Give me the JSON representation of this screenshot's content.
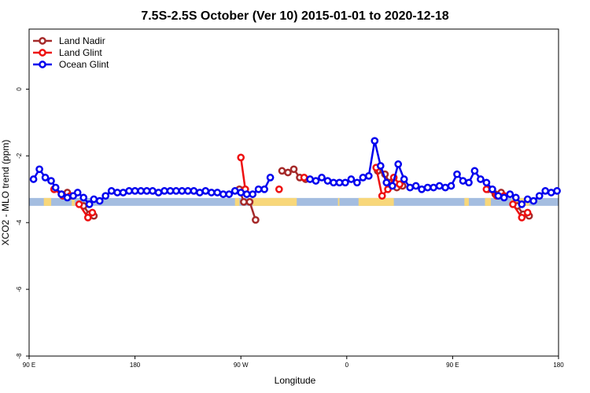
{
  "chart_data": {
    "type": "line",
    "title": "7.5S-2.5S October (Ver 10)   2015-01-01 to 2020-12-18",
    "xlabel": "Longitude",
    "ylabel": "XCO2 - MLO trend (ppm)",
    "xlim": [
      45,
      405
    ],
    "ylim": [
      -8,
      1.8
    ],
    "x_ticks": [
      {
        "value": 45,
        "label": "90 E"
      },
      {
        "value": 117,
        "label": "180"
      },
      {
        "value": 189,
        "label": "90 W"
      },
      {
        "value": 261,
        "label": "0"
      },
      {
        "value": 333,
        "label": "90 E"
      },
      {
        "value": 405,
        "label": "180"
      }
    ],
    "y_ticks": [
      0,
      -2,
      -4,
      -6,
      -8
    ],
    "grid": false,
    "legend_position": "top-left",
    "land_ocean_strip": {
      "y_center": -3.38,
      "ocean_color": "#a4bde0",
      "land_color": "#f8d77a",
      "land_segments": [
        [
          55,
          60
        ],
        [
          74,
          76
        ],
        [
          185,
          188
        ],
        [
          197,
          227
        ],
        [
          255,
          256
        ],
        [
          269,
          293
        ],
        [
          341,
          344
        ],
        [
          355,
          359
        ],
        [
          373,
          385
        ]
      ]
    },
    "series": [
      {
        "name": "Land Nadir",
        "color": "#a52a2a",
        "segments": [
          [
            [
              62,
              -3.0
            ],
            [
              67,
              -3.15
            ],
            [
              71,
              -3.1
            ]
          ],
          [
            [
              82,
              -3.5
            ],
            [
              86,
              -3.75
            ],
            [
              89,
              -3.8
            ]
          ],
          [
            [
              188,
              -3.0
            ],
            [
              191,
              -3.38
            ],
            [
              195,
              -3.38
            ],
            [
              199,
              -3.92
            ]
          ],
          [
            [
              217,
              -2.45
            ],
            [
              221,
              -2.5
            ],
            [
              225,
              -2.4
            ],
            [
              229,
              -2.65
            ],
            [
              233,
              -2.7
            ]
          ],
          [
            [
              282,
              -2.45
            ],
            [
              287,
              -2.55
            ],
            [
              290,
              -2.8
            ],
            [
              295,
              -2.95
            ],
            [
              299,
              -2.9
            ]
          ],
          [
            [
              357,
              -3.0
            ],
            [
              362,
              -3.15
            ],
            [
              366,
              -3.1
            ]
          ],
          [
            [
              377,
              -3.5
            ],
            [
              381,
              -3.75
            ],
            [
              385,
              -3.8
            ]
          ]
        ]
      },
      {
        "name": "Land Glint",
        "color": "#ee1111",
        "segments": [
          [
            [
              62,
              -3.0
            ],
            [
              68,
              -3.2
            ],
            [
              73,
              -3.2
            ]
          ],
          [
            [
              79,
              -3.45
            ],
            [
              85,
              -3.85
            ],
            [
              88,
              -3.7
            ]
          ],
          [
            [
              189,
              -2.05
            ],
            [
              192,
              -3.0
            ]
          ],
          [
            [
              215,
              -3.0
            ]
          ],
          [
            [
              232,
              -2.65
            ]
          ],
          [
            [
              281,
              -2.35
            ],
            [
              285,
              -3.2
            ],
            [
              289,
              -3.0
            ],
            [
              293,
              -2.65
            ],
            [
              297,
              -2.85
            ]
          ],
          [
            [
              356,
              -3.0
            ],
            [
              363,
              -3.2
            ],
            [
              368,
              -3.2
            ]
          ],
          [
            [
              374,
              -3.45
            ],
            [
              380,
              -3.85
            ],
            [
              384,
              -3.7
            ]
          ]
        ]
      },
      {
        "name": "Ocean Glint",
        "color": "#0000ee",
        "segments": [
          [
            [
              48,
              -2.7
            ],
            [
              52,
              -2.4
            ],
            [
              56,
              -2.65
            ],
            [
              60,
              -2.75
            ],
            [
              63,
              -2.95
            ],
            [
              67,
              -3.15
            ],
            [
              71,
              -3.25
            ],
            [
              75,
              -3.2
            ],
            [
              78,
              -3.1
            ],
            [
              82,
              -3.25
            ],
            [
              86,
              -3.45
            ],
            [
              89,
              -3.3
            ],
            [
              93,
              -3.35
            ],
            [
              97,
              -3.2
            ],
            [
              101,
              -3.05
            ],
            [
              105,
              -3.1
            ],
            [
              109,
              -3.1
            ],
            [
              113,
              -3.05
            ],
            [
              117,
              -3.05
            ],
            [
              121,
              -3.05
            ],
            [
              125,
              -3.05
            ],
            [
              129,
              -3.05
            ],
            [
              133,
              -3.1
            ],
            [
              137,
              -3.05
            ],
            [
              141,
              -3.05
            ],
            [
              145,
              -3.05
            ],
            [
              149,
              -3.05
            ],
            [
              153,
              -3.05
            ],
            [
              157,
              -3.05
            ],
            [
              161,
              -3.1
            ],
            [
              165,
              -3.05
            ],
            [
              169,
              -3.1
            ],
            [
              173,
              -3.1
            ],
            [
              177,
              -3.15
            ],
            [
              181,
              -3.15
            ],
            [
              185,
              -3.05
            ],
            [
              189,
              -3.1
            ],
            [
              193,
              -3.15
            ],
            [
              197,
              -3.15
            ],
            [
              201,
              -3.0
            ],
            [
              205,
              -3.0
            ],
            [
              209,
              -2.65
            ]
          ],
          [
            [
              236,
              -2.7
            ],
            [
              240,
              -2.75
            ],
            [
              244,
              -2.65
            ],
            [
              248,
              -2.75
            ],
            [
              252,
              -2.8
            ],
            [
              256,
              -2.8
            ],
            [
              260,
              -2.8
            ],
            [
              264,
              -2.7
            ],
            [
              268,
              -2.8
            ],
            [
              272,
              -2.65
            ],
            [
              276,
              -2.6
            ],
            [
              280,
              -1.55
            ],
            [
              284,
              -2.3
            ],
            [
              288,
              -2.8
            ],
            [
              292,
              -2.9
            ],
            [
              296,
              -2.25
            ],
            [
              300,
              -2.7
            ],
            [
              304,
              -2.95
            ],
            [
              308,
              -2.9
            ],
            [
              312,
              -3.0
            ],
            [
              316,
              -2.95
            ],
            [
              320,
              -2.95
            ],
            [
              324,
              -2.9
            ],
            [
              328,
              -2.95
            ],
            [
              332,
              -2.9
            ],
            [
              336,
              -2.55
            ],
            [
              340,
              -2.75
            ],
            [
              344,
              -2.8
            ],
            [
              348,
              -2.45
            ],
            [
              352,
              -2.7
            ],
            [
              356,
              -2.8
            ],
            [
              360,
              -3.0
            ],
            [
              364,
              -3.2
            ],
            [
              368,
              -3.25
            ],
            [
              372,
              -3.15
            ],
            [
              376,
              -3.25
            ],
            [
              380,
              -3.45
            ],
            [
              384,
              -3.3
            ],
            [
              388,
              -3.35
            ],
            [
              392,
              -3.2
            ],
            [
              396,
              -3.05
            ],
            [
              400,
              -3.1
            ],
            [
              404,
              -3.05
            ]
          ]
        ]
      }
    ]
  }
}
